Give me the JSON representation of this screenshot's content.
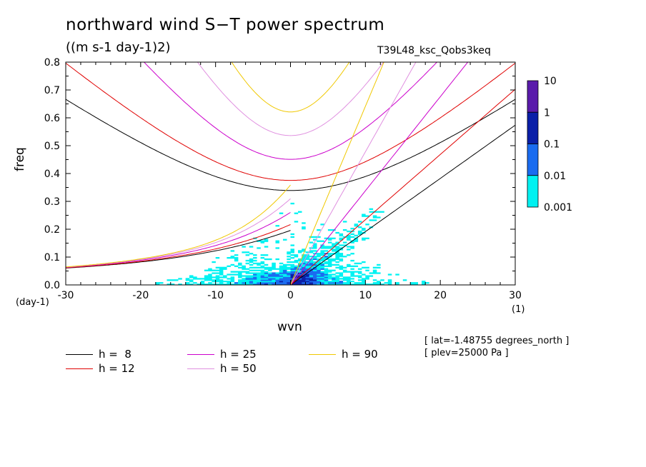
{
  "chart_data": {
    "type": "heatmap",
    "title": "northward wind S−T power spectrum",
    "units": "((m s-1 day-1)2)",
    "run_label": "T39L48_ksc_Qobs3keq",
    "xlabel": "wvn",
    "ylabel": "freq",
    "x_unit": "(1)",
    "y_unit": "(day-1)",
    "xlim": [
      -30,
      30
    ],
    "ylim": [
      0,
      0.8
    ],
    "x_ticks": [
      "-30",
      "-20",
      "-10",
      "0",
      "10",
      "20",
      "30"
    ],
    "y_ticks": [
      "0.0",
      "0.1",
      "0.2",
      "0.3",
      "0.4",
      "0.5",
      "0.6",
      "0.7",
      "0.8"
    ],
    "colorbar": {
      "levels": [
        "10",
        "1",
        "0.1",
        "0.01",
        "0.001"
      ],
      "colors": [
        "#5a1bab",
        "#0a1fa8",
        "#1a6cf0",
        "#00f2f2"
      ]
    },
    "dispersion_curves": [
      {
        "label": "h =  8",
        "h": 8,
        "color": "#000000"
      },
      {
        "label": "h = 12",
        "h": 12,
        "color": "#e00000"
      },
      {
        "label": "h = 25",
        "h": 25,
        "color": "#cc00cc"
      },
      {
        "label": "h = 50",
        "h": 50,
        "color": "#e090e0"
      },
      {
        "label": "h = 90",
        "h": 90,
        "color": "#f0c800"
      }
    ],
    "annotations": [
      "[ lat=-1.48755 degrees_north ]",
      "[ plev=25000 Pa ]"
    ]
  }
}
